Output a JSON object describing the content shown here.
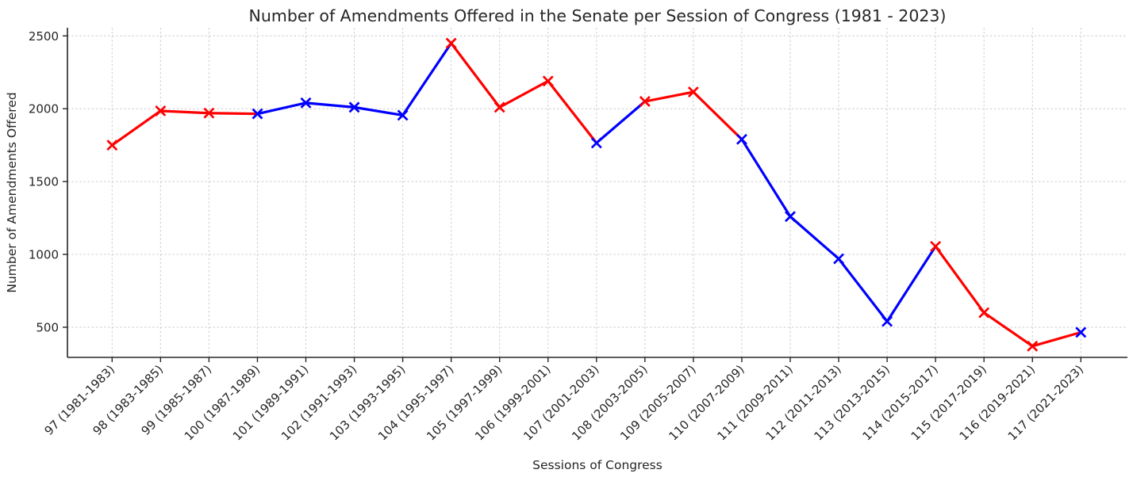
{
  "chart_data": {
    "type": "line",
    "title": "Number of Amendments Offered in the Senate per Session of Congress (1981 - 2023)",
    "xlabel": "Sessions of Congress",
    "ylabel": "Number of Amendments Offered",
    "categories": [
      "97 (1981-1983)",
      "98 (1983-1985)",
      "99 (1985-1987)",
      "100 (1987-1989)",
      "101 (1989-1991)",
      "102 (1991-1993)",
      "103 (1993-1995)",
      "104 (1995-1997)",
      "105 (1997-1999)",
      "106 (1999-2001)",
      "107 (2001-2003)",
      "108 (2003-2005)",
      "109 (2005-2007)",
      "110 (2007-2009)",
      "111 (2009-2011)",
      "112 (2011-2013)",
      "113 (2013-2015)",
      "114 (2015-2017)",
      "115 (2017-2019)",
      "116 (2019-2021)",
      "117 (2021-2023)"
    ],
    "values": [
      1750,
      1985,
      1970,
      1965,
      2040,
      2010,
      1955,
      2450,
      2010,
      2190,
      1765,
      2050,
      2115,
      1790,
      1260,
      970,
      540,
      1055,
      600,
      370,
      465
    ],
    "point_colors": [
      "red",
      "red",
      "red",
      "blue",
      "blue",
      "blue",
      "blue",
      "red",
      "red",
      "red",
      "blue",
      "red",
      "red",
      "blue",
      "blue",
      "blue",
      "blue",
      "red",
      "red",
      "red",
      "blue"
    ],
    "segment_color_rule": "segment takes color of its left endpoint",
    "colors": {
      "red": "#ff0000",
      "blue": "#0000ff"
    },
    "marker": "x",
    "yticks": [
      500,
      1000,
      1500,
      2000,
      2500
    ],
    "ylim": [
      293,
      2556
    ],
    "grid": true,
    "grid_style": "dashed",
    "grid_color": "#cccccc",
    "text_color": "#262626",
    "spine_color": "#262626",
    "legend": "none",
    "xticklabel_rotation": 45
  }
}
